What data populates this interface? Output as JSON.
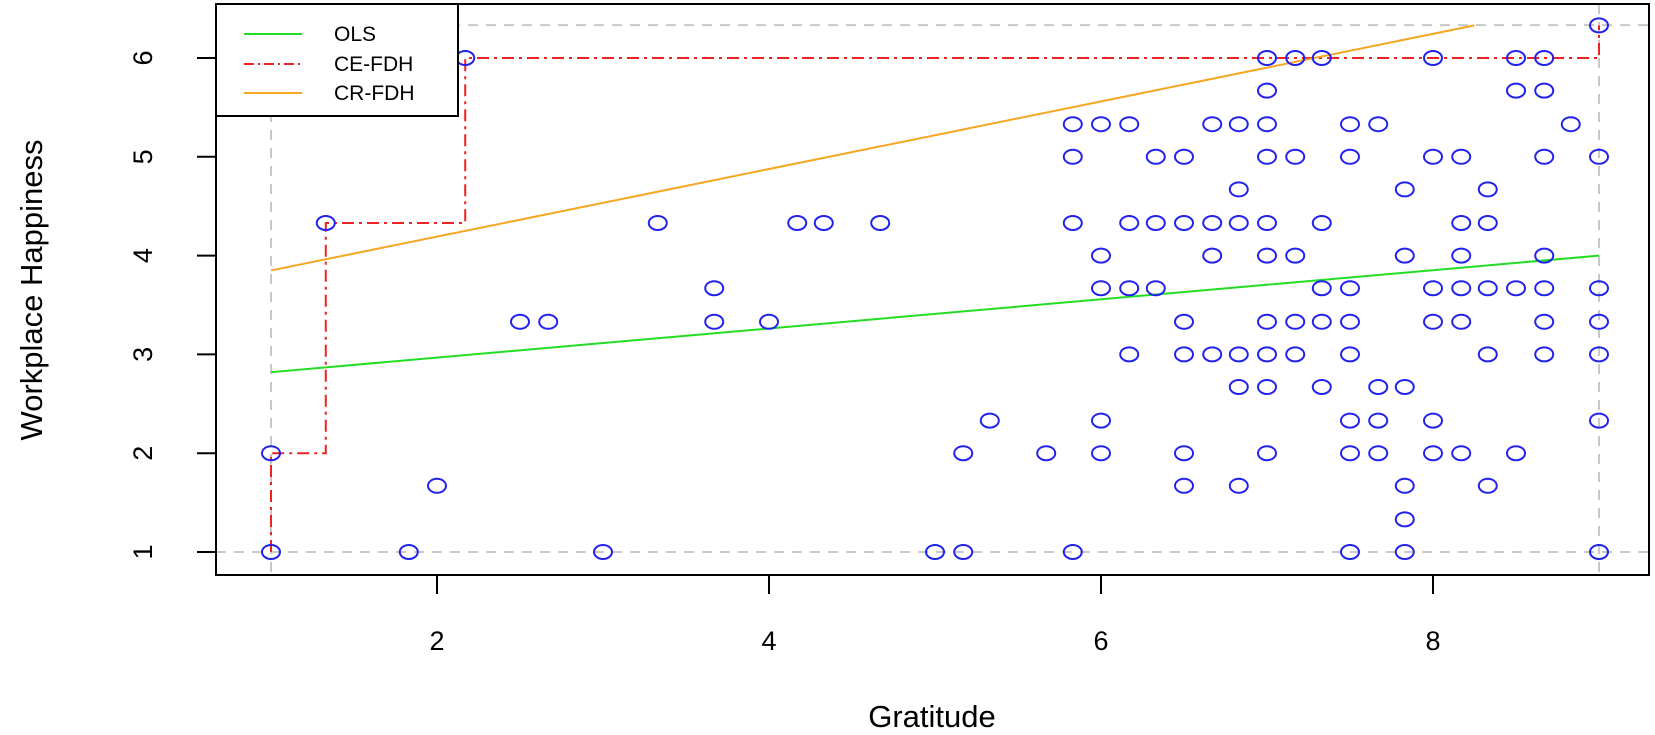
{
  "chart_data": {
    "type": "scatter",
    "title": "",
    "xlabel": "Gratitude",
    "ylabel": "Workplace Happiness",
    "xlim": [
      1,
      9
    ],
    "ylim": [
      1,
      6.333
    ],
    "x_ticks": [
      2,
      4,
      6,
      8
    ],
    "y_ticks": [
      1,
      2,
      3,
      4,
      5,
      6
    ],
    "grid": "dashed reference lines at data bounds (x=1, x=9, y=1, y=6.33)",
    "legend": {
      "position": "top-left",
      "entries": [
        {
          "label": "OLS",
          "color": "#22dd22",
          "style": "solid"
        },
        {
          "label": "CE-FDH",
          "color": "#ee2222",
          "style": "dashdot"
        },
        {
          "label": "CR-FDH",
          "color": "#f5a623",
          "style": "solid"
        }
      ]
    },
    "points_color": "#2222ee",
    "series": [
      {
        "name": "observations",
        "type": "scatter",
        "points": [
          [
            9,
            6.33
          ],
          [
            2.17,
            6
          ],
          [
            7,
            6
          ],
          [
            7.17,
            6
          ],
          [
            7.33,
            6
          ],
          [
            8,
            6
          ],
          [
            8.5,
            6
          ],
          [
            8.67,
            6
          ],
          [
            7,
            5.67
          ],
          [
            8.5,
            5.67
          ],
          [
            8.67,
            5.67
          ],
          [
            5.83,
            5.33
          ],
          [
            6,
            5.33
          ],
          [
            6.17,
            5.33
          ],
          [
            6.67,
            5.33
          ],
          [
            6.83,
            5.33
          ],
          [
            7,
            5.33
          ],
          [
            7.5,
            5.33
          ],
          [
            7.67,
            5.33
          ],
          [
            8.83,
            5.33
          ],
          [
            5.83,
            5
          ],
          [
            6.33,
            5
          ],
          [
            6.5,
            5
          ],
          [
            7,
            5
          ],
          [
            7.17,
            5
          ],
          [
            7.5,
            5
          ],
          [
            8,
            5
          ],
          [
            8.17,
            5
          ],
          [
            8.67,
            5
          ],
          [
            9,
            5
          ],
          [
            6.83,
            4.67
          ],
          [
            7.83,
            4.67
          ],
          [
            8.33,
            4.67
          ],
          [
            1.33,
            4.33
          ],
          [
            3.33,
            4.33
          ],
          [
            4.17,
            4.33
          ],
          [
            4.33,
            4.33
          ],
          [
            4.67,
            4.33
          ],
          [
            5.83,
            4.33
          ],
          [
            6.17,
            4.33
          ],
          [
            6.33,
            4.33
          ],
          [
            6.5,
            4.33
          ],
          [
            6.67,
            4.33
          ],
          [
            6.83,
            4.33
          ],
          [
            7,
            4.33
          ],
          [
            7.33,
            4.33
          ],
          [
            8.17,
            4.33
          ],
          [
            8.33,
            4.33
          ],
          [
            6,
            4
          ],
          [
            6.67,
            4
          ],
          [
            7,
            4
          ],
          [
            7.17,
            4
          ],
          [
            7.83,
            4
          ],
          [
            8.17,
            4
          ],
          [
            8.67,
            4
          ],
          [
            3.67,
            3.67
          ],
          [
            6,
            3.67
          ],
          [
            6.17,
            3.67
          ],
          [
            6.33,
            3.67
          ],
          [
            7.33,
            3.67
          ],
          [
            7.5,
            3.67
          ],
          [
            8,
            3.67
          ],
          [
            8.17,
            3.67
          ],
          [
            8.33,
            3.67
          ],
          [
            8.5,
            3.67
          ],
          [
            8.67,
            3.67
          ],
          [
            9,
            3.67
          ],
          [
            2.5,
            3.33
          ],
          [
            2.67,
            3.33
          ],
          [
            3.67,
            3.33
          ],
          [
            4,
            3.33
          ],
          [
            6.5,
            3.33
          ],
          [
            7,
            3.33
          ],
          [
            7.17,
            3.33
          ],
          [
            7.33,
            3.33
          ],
          [
            7.5,
            3.33
          ],
          [
            8,
            3.33
          ],
          [
            8.17,
            3.33
          ],
          [
            8.67,
            3.33
          ],
          [
            9,
            3.33
          ],
          [
            6.17,
            3
          ],
          [
            6.5,
            3
          ],
          [
            6.67,
            3
          ],
          [
            6.83,
            3
          ],
          [
            7,
            3
          ],
          [
            7.17,
            3
          ],
          [
            7.5,
            3
          ],
          [
            8.33,
            3
          ],
          [
            8.67,
            3
          ],
          [
            9,
            3
          ],
          [
            6.83,
            2.67
          ],
          [
            7,
            2.67
          ],
          [
            7.33,
            2.67
          ],
          [
            7.67,
            2.67
          ],
          [
            7.83,
            2.67
          ],
          [
            5.33,
            2.33
          ],
          [
            6,
            2.33
          ],
          [
            7.5,
            2.33
          ],
          [
            7.67,
            2.33
          ],
          [
            8,
            2.33
          ],
          [
            9,
            2.33
          ],
          [
            1,
            2
          ],
          [
            5.17,
            2
          ],
          [
            5.67,
            2
          ],
          [
            6,
            2
          ],
          [
            6.5,
            2
          ],
          [
            7,
            2
          ],
          [
            7.5,
            2
          ],
          [
            7.67,
            2
          ],
          [
            8,
            2
          ],
          [
            8.17,
            2
          ],
          [
            8.5,
            2
          ],
          [
            2,
            1.67
          ],
          [
            6.5,
            1.67
          ],
          [
            6.83,
            1.67
          ],
          [
            7.83,
            1.67
          ],
          [
            8.33,
            1.67
          ],
          [
            7.83,
            1.33
          ],
          [
            1,
            1
          ],
          [
            1.83,
            1
          ],
          [
            3,
            1
          ],
          [
            5,
            1
          ],
          [
            5.17,
            1
          ],
          [
            5.83,
            1
          ],
          [
            7.5,
            1
          ],
          [
            7.83,
            1
          ],
          [
            9,
            1
          ]
        ]
      },
      {
        "name": "OLS",
        "type": "line",
        "points": [
          [
            1,
            2.82
          ],
          [
            9,
            4.0
          ]
        ]
      },
      {
        "name": "CE-FDH",
        "type": "step",
        "points": [
          [
            1,
            1
          ],
          [
            1,
            2
          ],
          [
            1.33,
            2
          ],
          [
            1.33,
            4.33
          ],
          [
            2.17,
            4.33
          ],
          [
            2.17,
            6
          ],
          [
            9,
            6
          ],
          [
            9,
            6.33
          ]
        ]
      },
      {
        "name": "CR-FDH",
        "type": "line",
        "points": [
          [
            1,
            3.85
          ],
          [
            8.25,
            6.33
          ]
        ]
      }
    ]
  }
}
